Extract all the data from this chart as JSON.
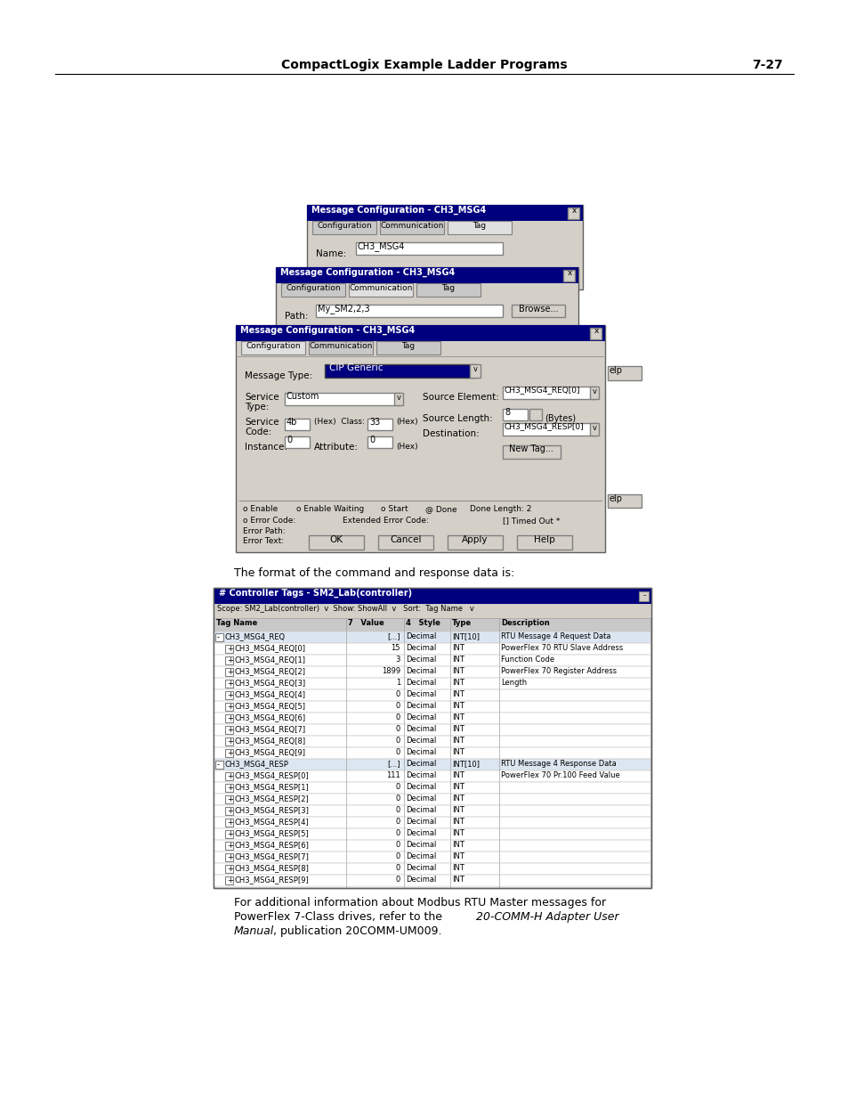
{
  "page_header_text": "CompactLogix Example Ladder Programs",
  "page_number": "7-27",
  "middle_text": "The format of the command and response data is:",
  "bg_color": "#ffffff",
  "dialog_bg": "#d4d0c8",
  "table_rows": [
    [
      "-CH3_MSG4_REQ",
      "[...]",
      "Decimal",
      "INT[10]",
      "RTU Message 4 Request Data"
    ],
    [
      "+CH3_MSG4_REQ[0]",
      "15",
      "Decimal",
      "INT",
      "PowerFlex 70 RTU Slave Address"
    ],
    [
      "+CH3_MSG4_REQ[1]",
      "3",
      "Decimal",
      "INT",
      "Function Code"
    ],
    [
      "+CH3_MSG4_REQ[2]",
      "1899",
      "Decimal",
      "INT",
      "PowerFlex 70 Register Address"
    ],
    [
      "+CH3_MSG4_REQ[3]",
      "1",
      "Decimal",
      "INT",
      "Length"
    ],
    [
      "+CH3_MSG4_REQ[4]",
      "0",
      "Decimal",
      "INT",
      ""
    ],
    [
      "+CH3_MSG4_REQ[5]",
      "0",
      "Decimal",
      "INT",
      ""
    ],
    [
      "+CH3_MSG4_REQ[6]",
      "0",
      "Decimal",
      "INT",
      ""
    ],
    [
      "+CH3_MSG4_REQ[7]",
      "0",
      "Decimal",
      "INT",
      ""
    ],
    [
      "+CH3_MSG4_REQ[8]",
      "0",
      "Decimal",
      "INT",
      ""
    ],
    [
      "+CH3_MSG4_REQ[9]",
      "0",
      "Decimal",
      "INT",
      ""
    ],
    [
      "-CH3_MSG4_RESP",
      "[...]",
      "Decimal",
      "INT[10]",
      "RTU Message 4 Response Data"
    ],
    [
      "+CH3_MSG4_RESP[0]",
      "111",
      "Decimal",
      "INT",
      "PowerFlex 70 Pr.100 Feed Value"
    ],
    [
      "+CH3_MSG4_RESP[1]",
      "0",
      "Decimal",
      "INT",
      ""
    ],
    [
      "+CH3_MSG4_RESP[2]",
      "0",
      "Decimal",
      "INT",
      ""
    ],
    [
      "+CH3_MSG4_RESP[3]",
      "0",
      "Decimal",
      "INT",
      ""
    ],
    [
      "+CH3_MSG4_RESP[4]",
      "0",
      "Decimal",
      "INT",
      ""
    ],
    [
      "+CH3_MSG4_RESP[5]",
      "0",
      "Decimal",
      "INT",
      ""
    ],
    [
      "+CH3_MSG4_RESP[6]",
      "0",
      "Decimal",
      "INT",
      ""
    ],
    [
      "+CH3_MSG4_RESP[7]",
      "0",
      "Decimal",
      "INT",
      ""
    ],
    [
      "+CH3_MSG4_RESP[8]",
      "0",
      "Decimal",
      "INT",
      ""
    ],
    [
      "+CH3_MSG4_RESP[9]",
      "0",
      "Decimal",
      "INT",
      ""
    ]
  ]
}
